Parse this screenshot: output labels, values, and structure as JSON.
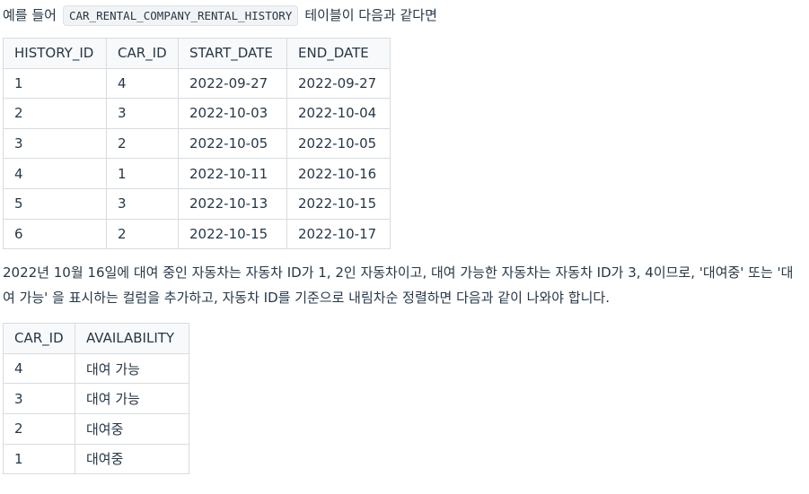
{
  "intro": {
    "before": "예를 들어",
    "code": "CAR_RENTAL_COMPANY_RENTAL_HISTORY",
    "after": "테이블이 다음과 같다면"
  },
  "history_table": {
    "headers": [
      "HISTORY_ID",
      "CAR_ID",
      "START_DATE",
      "END_DATE"
    ],
    "rows": [
      [
        "1",
        "4",
        "2022-09-27",
        "2022-09-27"
      ],
      [
        "2",
        "3",
        "2022-10-03",
        "2022-10-04"
      ],
      [
        "3",
        "2",
        "2022-10-05",
        "2022-10-05"
      ],
      [
        "4",
        "1",
        "2022-10-11",
        "2022-10-16"
      ],
      [
        "5",
        "3",
        "2022-10-13",
        "2022-10-15"
      ],
      [
        "6",
        "2",
        "2022-10-15",
        "2022-10-17"
      ]
    ]
  },
  "explanation": "2022년 10월 16일에 대여 중인 자동차는 자동차 ID가 1, 2인 자동차이고, 대여 가능한 자동차는 자동차 ID가 3, 4이므로, '대여중' 또는 '대여 가능' 을 표시하는 컬럼을 추가하고, 자동차 ID를 기준으로 내림차순 정렬하면 다음과 같이 나와야 합니다.",
  "result_table": {
    "headers": [
      "CAR_ID",
      "AVAILABILITY"
    ],
    "rows": [
      [
        "4",
        "대여 가능"
      ],
      [
        "3",
        "대여 가능"
      ],
      [
        "2",
        "대여중"
      ],
      [
        "1",
        "대여중"
      ]
    ]
  }
}
